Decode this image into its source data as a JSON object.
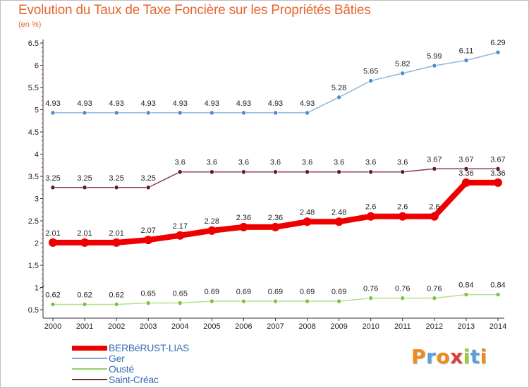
{
  "page": {
    "title": "Evolution du Taux de Taxe Foncière sur les Propriétés Bâties",
    "subtitle": "(en %)"
  },
  "chart_data": {
    "type": "line",
    "title": "Evolution du Taux de Taxe Foncière sur les Propriétés Bâties",
    "ylabel": "(en %)",
    "xlabel": "",
    "x": [
      "2000",
      "2001",
      "2002",
      "2003",
      "2004",
      "2005",
      "2006",
      "2007",
      "2008",
      "2009",
      "2010",
      "2011",
      "2012",
      "2013",
      "2014"
    ],
    "ylim": [
      0.5,
      6.5
    ],
    "yticks": [
      "0.5",
      "1",
      "1.5",
      "2",
      "2.5",
      "3",
      "3.5",
      "4",
      "4.5",
      "5",
      "5.5",
      "6",
      "6.5"
    ],
    "grid": false,
    "legend": "bottom-left",
    "series": [
      {
        "name": "BERBéRUST-LIAS",
        "color": "#ee0000",
        "values": [
          2.01,
          2.01,
          2.01,
          2.07,
          2.17,
          2.28,
          2.36,
          2.36,
          2.48,
          2.48,
          2.6,
          2.6,
          2.6,
          3.36,
          3.36
        ],
        "labels": [
          "2.01",
          "2.01",
          "2.01",
          "2.07",
          "2.17",
          "2.28",
          "2.36",
          "2.36",
          "2.48",
          "2.48",
          "2.6",
          "2.6",
          "2.6",
          "3.36",
          "3.36"
        ]
      },
      {
        "name": "Ger",
        "color": "#7ba7d6",
        "values": [
          4.93,
          4.93,
          4.93,
          4.93,
          4.93,
          4.93,
          4.93,
          4.93,
          4.93,
          5.28,
          5.65,
          5.82,
          5.99,
          6.11,
          6.29
        ],
        "labels": [
          "4.93",
          "4.93",
          "4.93",
          "4.93",
          "4.93",
          "4.93",
          "4.93",
          "4.93",
          "4.93",
          "5.28",
          "5.65",
          "5.82",
          "5.99",
          "6.11",
          "6.29"
        ]
      },
      {
        "name": "Ousté",
        "color": "#99d066",
        "values": [
          0.62,
          0.62,
          0.62,
          0.65,
          0.65,
          0.69,
          0.69,
          0.69,
          0.69,
          0.69,
          0.76,
          0.76,
          0.76,
          0.84,
          0.84
        ],
        "labels": [
          "0.62",
          "0.62",
          "0.62",
          "0.65",
          "0.65",
          "0.69",
          "0.69",
          "0.69",
          "0.69",
          "0.69",
          "0.76",
          "0.76",
          "0.76",
          "0.84",
          "0.84"
        ]
      },
      {
        "name": "Saint-Créac",
        "color": "#7a2e34",
        "values": [
          3.25,
          3.25,
          3.25,
          3.25,
          3.6,
          3.6,
          3.6,
          3.6,
          3.6,
          3.6,
          3.6,
          3.6,
          3.67,
          3.67,
          3.67
        ],
        "labels": [
          "3.25",
          "3.25",
          "3.25",
          "3.25",
          "3.6",
          "3.6",
          "3.6",
          "3.6",
          "3.6",
          "3.6",
          "3.6",
          "3.6",
          "3.67",
          "3.67",
          "3.67"
        ]
      }
    ]
  },
  "logo": {
    "text": "Proxiti",
    "letters": [
      "P",
      "r",
      "o",
      "x",
      "i",
      "t",
      "i"
    ],
    "colors": [
      "#f08a1c",
      "#5ba0dc",
      "#f08a1c",
      "#e03a3a",
      "#9cc93a",
      "#5ba0dc",
      "#f08a1c"
    ]
  }
}
